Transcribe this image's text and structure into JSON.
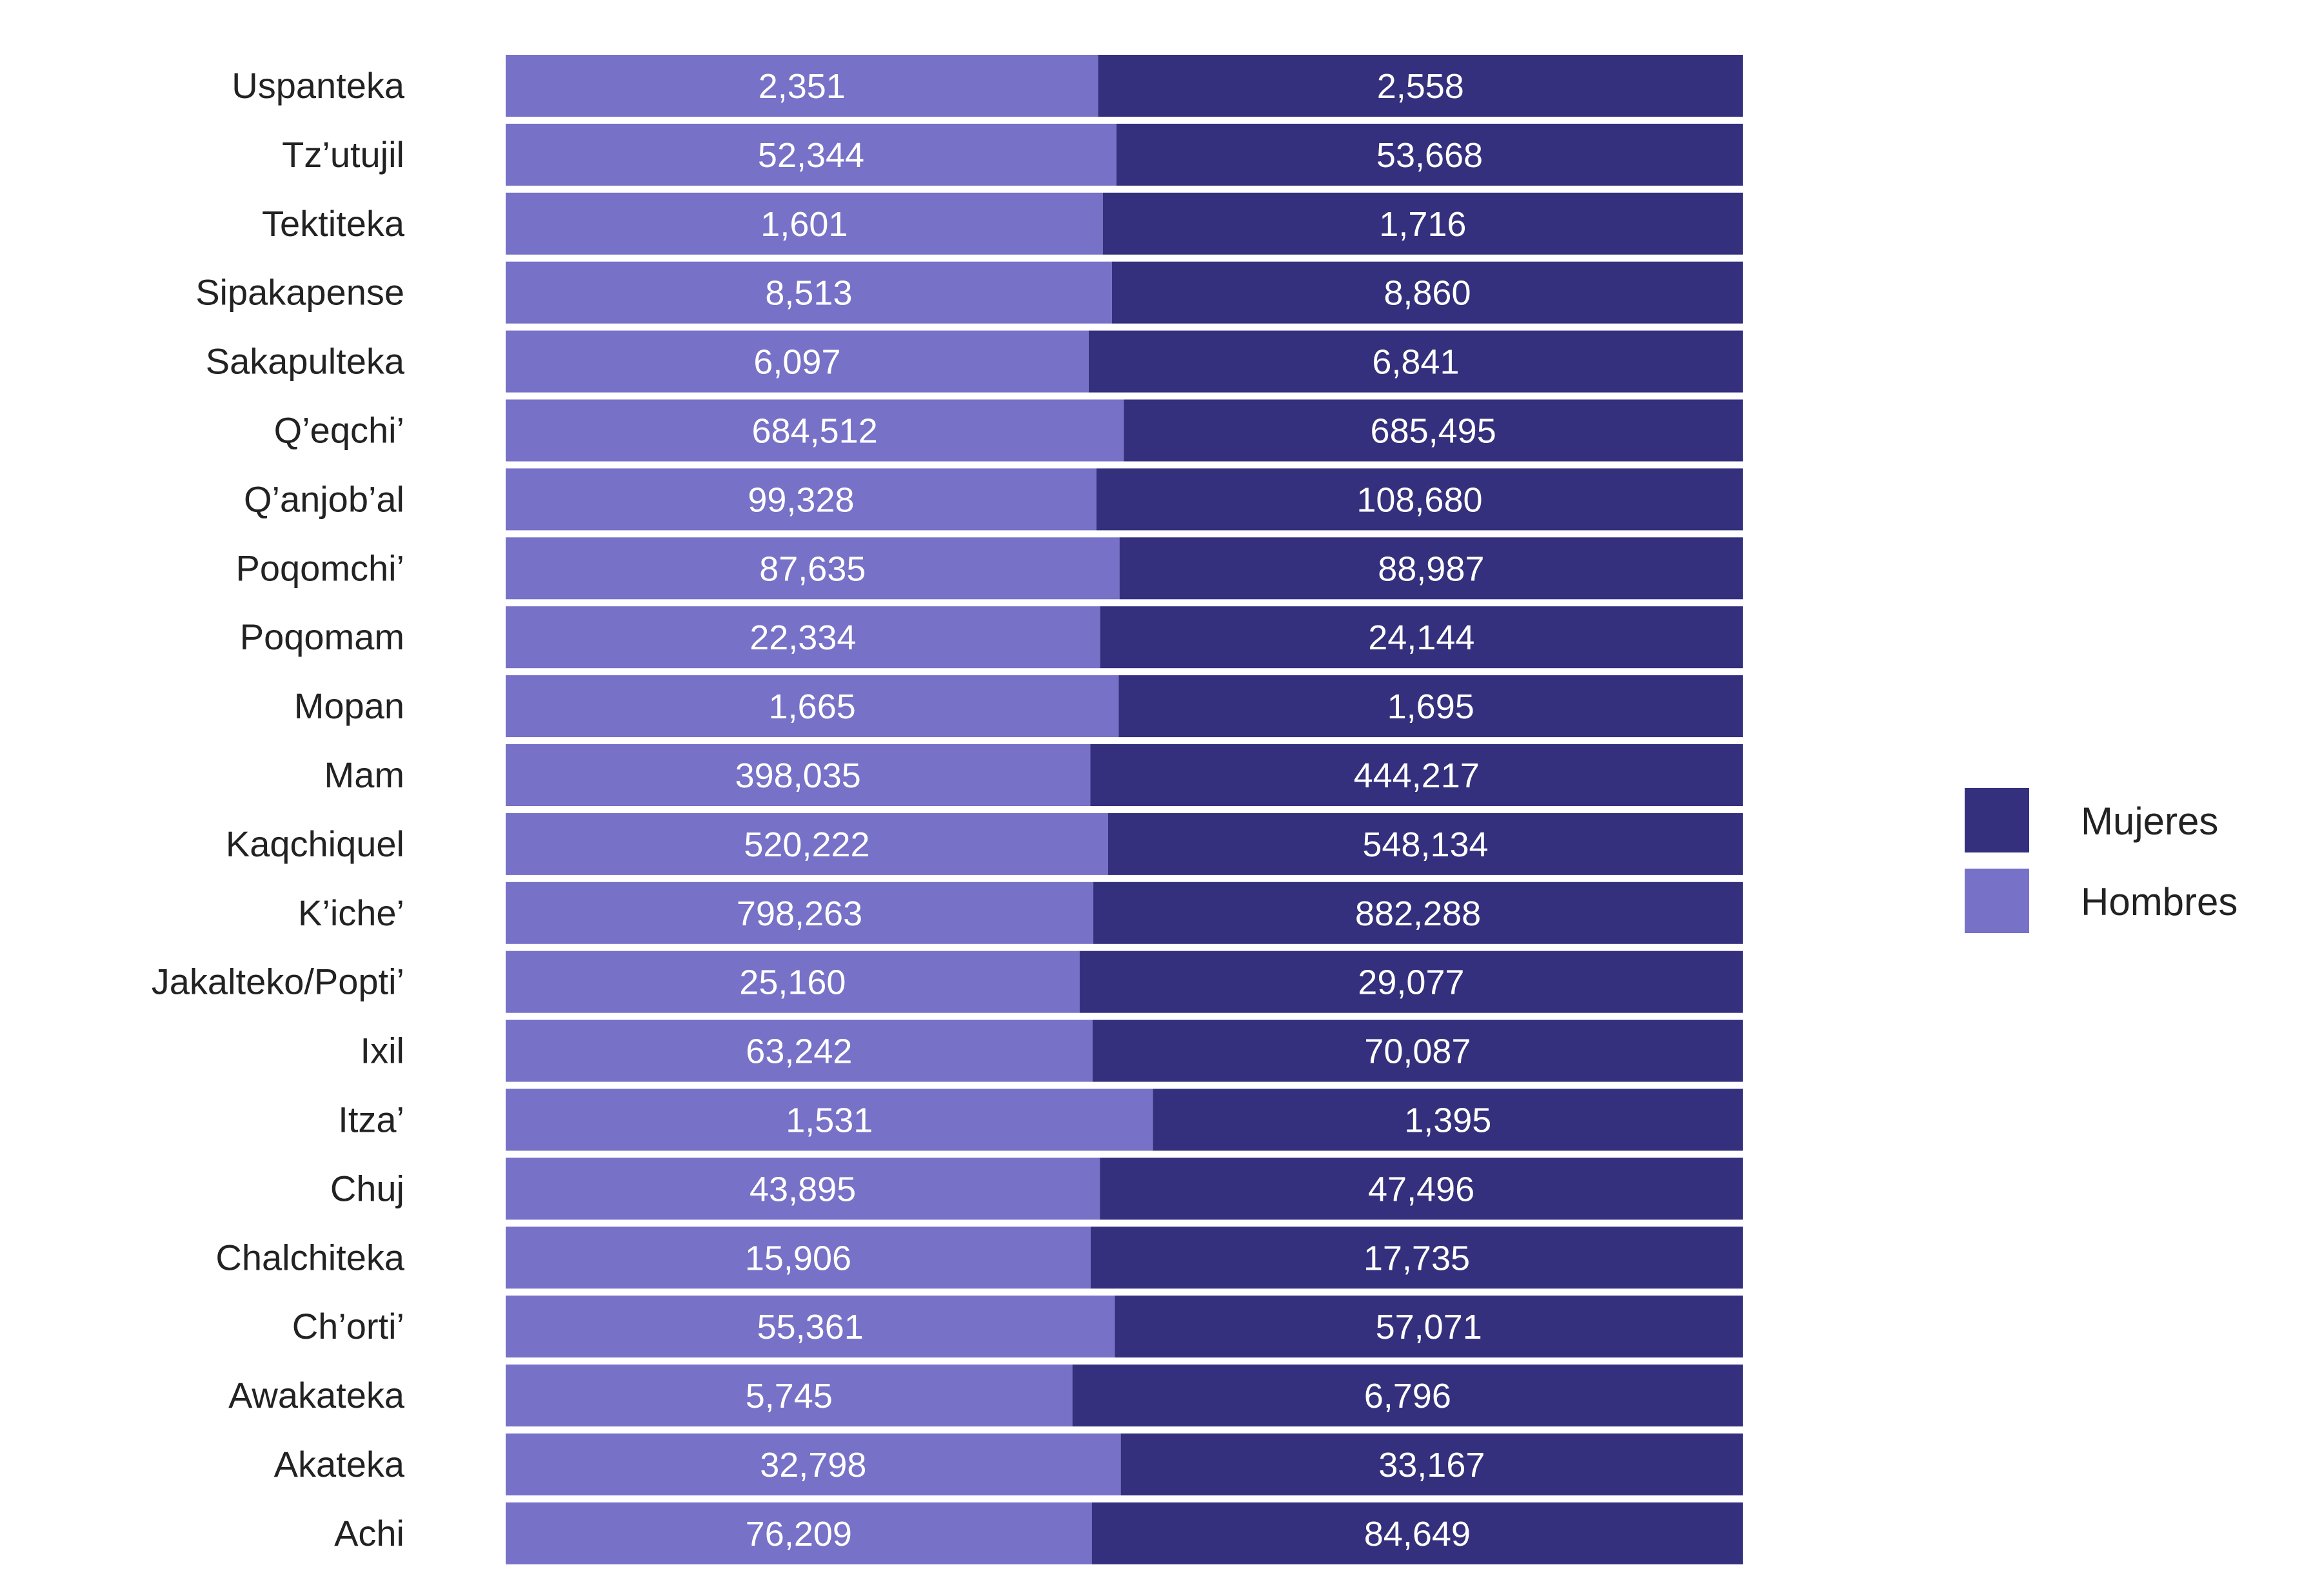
{
  "chart_data": {
    "type": "bar",
    "stacked": "percent",
    "orientation": "horizontal",
    "title": "",
    "xlabel": "",
    "ylabel": "",
    "xlim": [
      0,
      1
    ],
    "grid": false,
    "legend_position": "right",
    "categories": [
      "Uspanteka",
      "Tz’utujil",
      "Tektiteka",
      "Sipakapense",
      "Sakapulteka",
      "Q’eqchi’",
      "Q’anjob’al",
      "Poqomchi’",
      "Poqomam",
      "Mopan",
      "Mam",
      "Kaqchiquel",
      "K’iche’",
      "Jakalteko/Popti’",
      "Ixil",
      "Itza’",
      "Chuj",
      "Chalchiteka",
      "Ch’orti’",
      "Awakateka",
      "Akateka",
      "Achi"
    ],
    "series": [
      {
        "name": "Hombres",
        "color": "#7771c8",
        "values": [
          2351,
          52344,
          1601,
          8513,
          6097,
          684512,
          99328,
          87635,
          22334,
          1665,
          398035,
          520222,
          798263,
          25160,
          63242,
          1531,
          43895,
          15906,
          55361,
          5745,
          32798,
          76209
        ],
        "labels": [
          "2,351",
          "52,344",
          "1,601",
          "8,513",
          "6,097",
          "684,512",
          "99,328",
          "87,635",
          "22,334",
          "1,665",
          "398,035",
          "520,222",
          "798,263",
          "25,160",
          "63,242",
          "1,531",
          "43,895",
          "15,906",
          "55,361",
          "5,745",
          "32,798",
          "76,209"
        ]
      },
      {
        "name": "Mujeres",
        "color": "#34307d",
        "values": [
          2558,
          53668,
          1716,
          8860,
          6841,
          685495,
          108680,
          88987,
          24144,
          1695,
          444217,
          548134,
          882288,
          29077,
          70087,
          1395,
          47496,
          17735,
          57071,
          6796,
          33167,
          84649
        ],
        "labels": [
          "2,558",
          "53,668",
          "1,716",
          "8,860",
          "6,841",
          "685,495",
          "108,680",
          "88,987",
          "24,144",
          "1,695",
          "444,217",
          "548,134",
          "882,288",
          "29,077",
          "70,087",
          "1,395",
          "47,496",
          "17,735",
          "57,071",
          "6,796",
          "33,167",
          "84,649"
        ]
      }
    ]
  }
}
